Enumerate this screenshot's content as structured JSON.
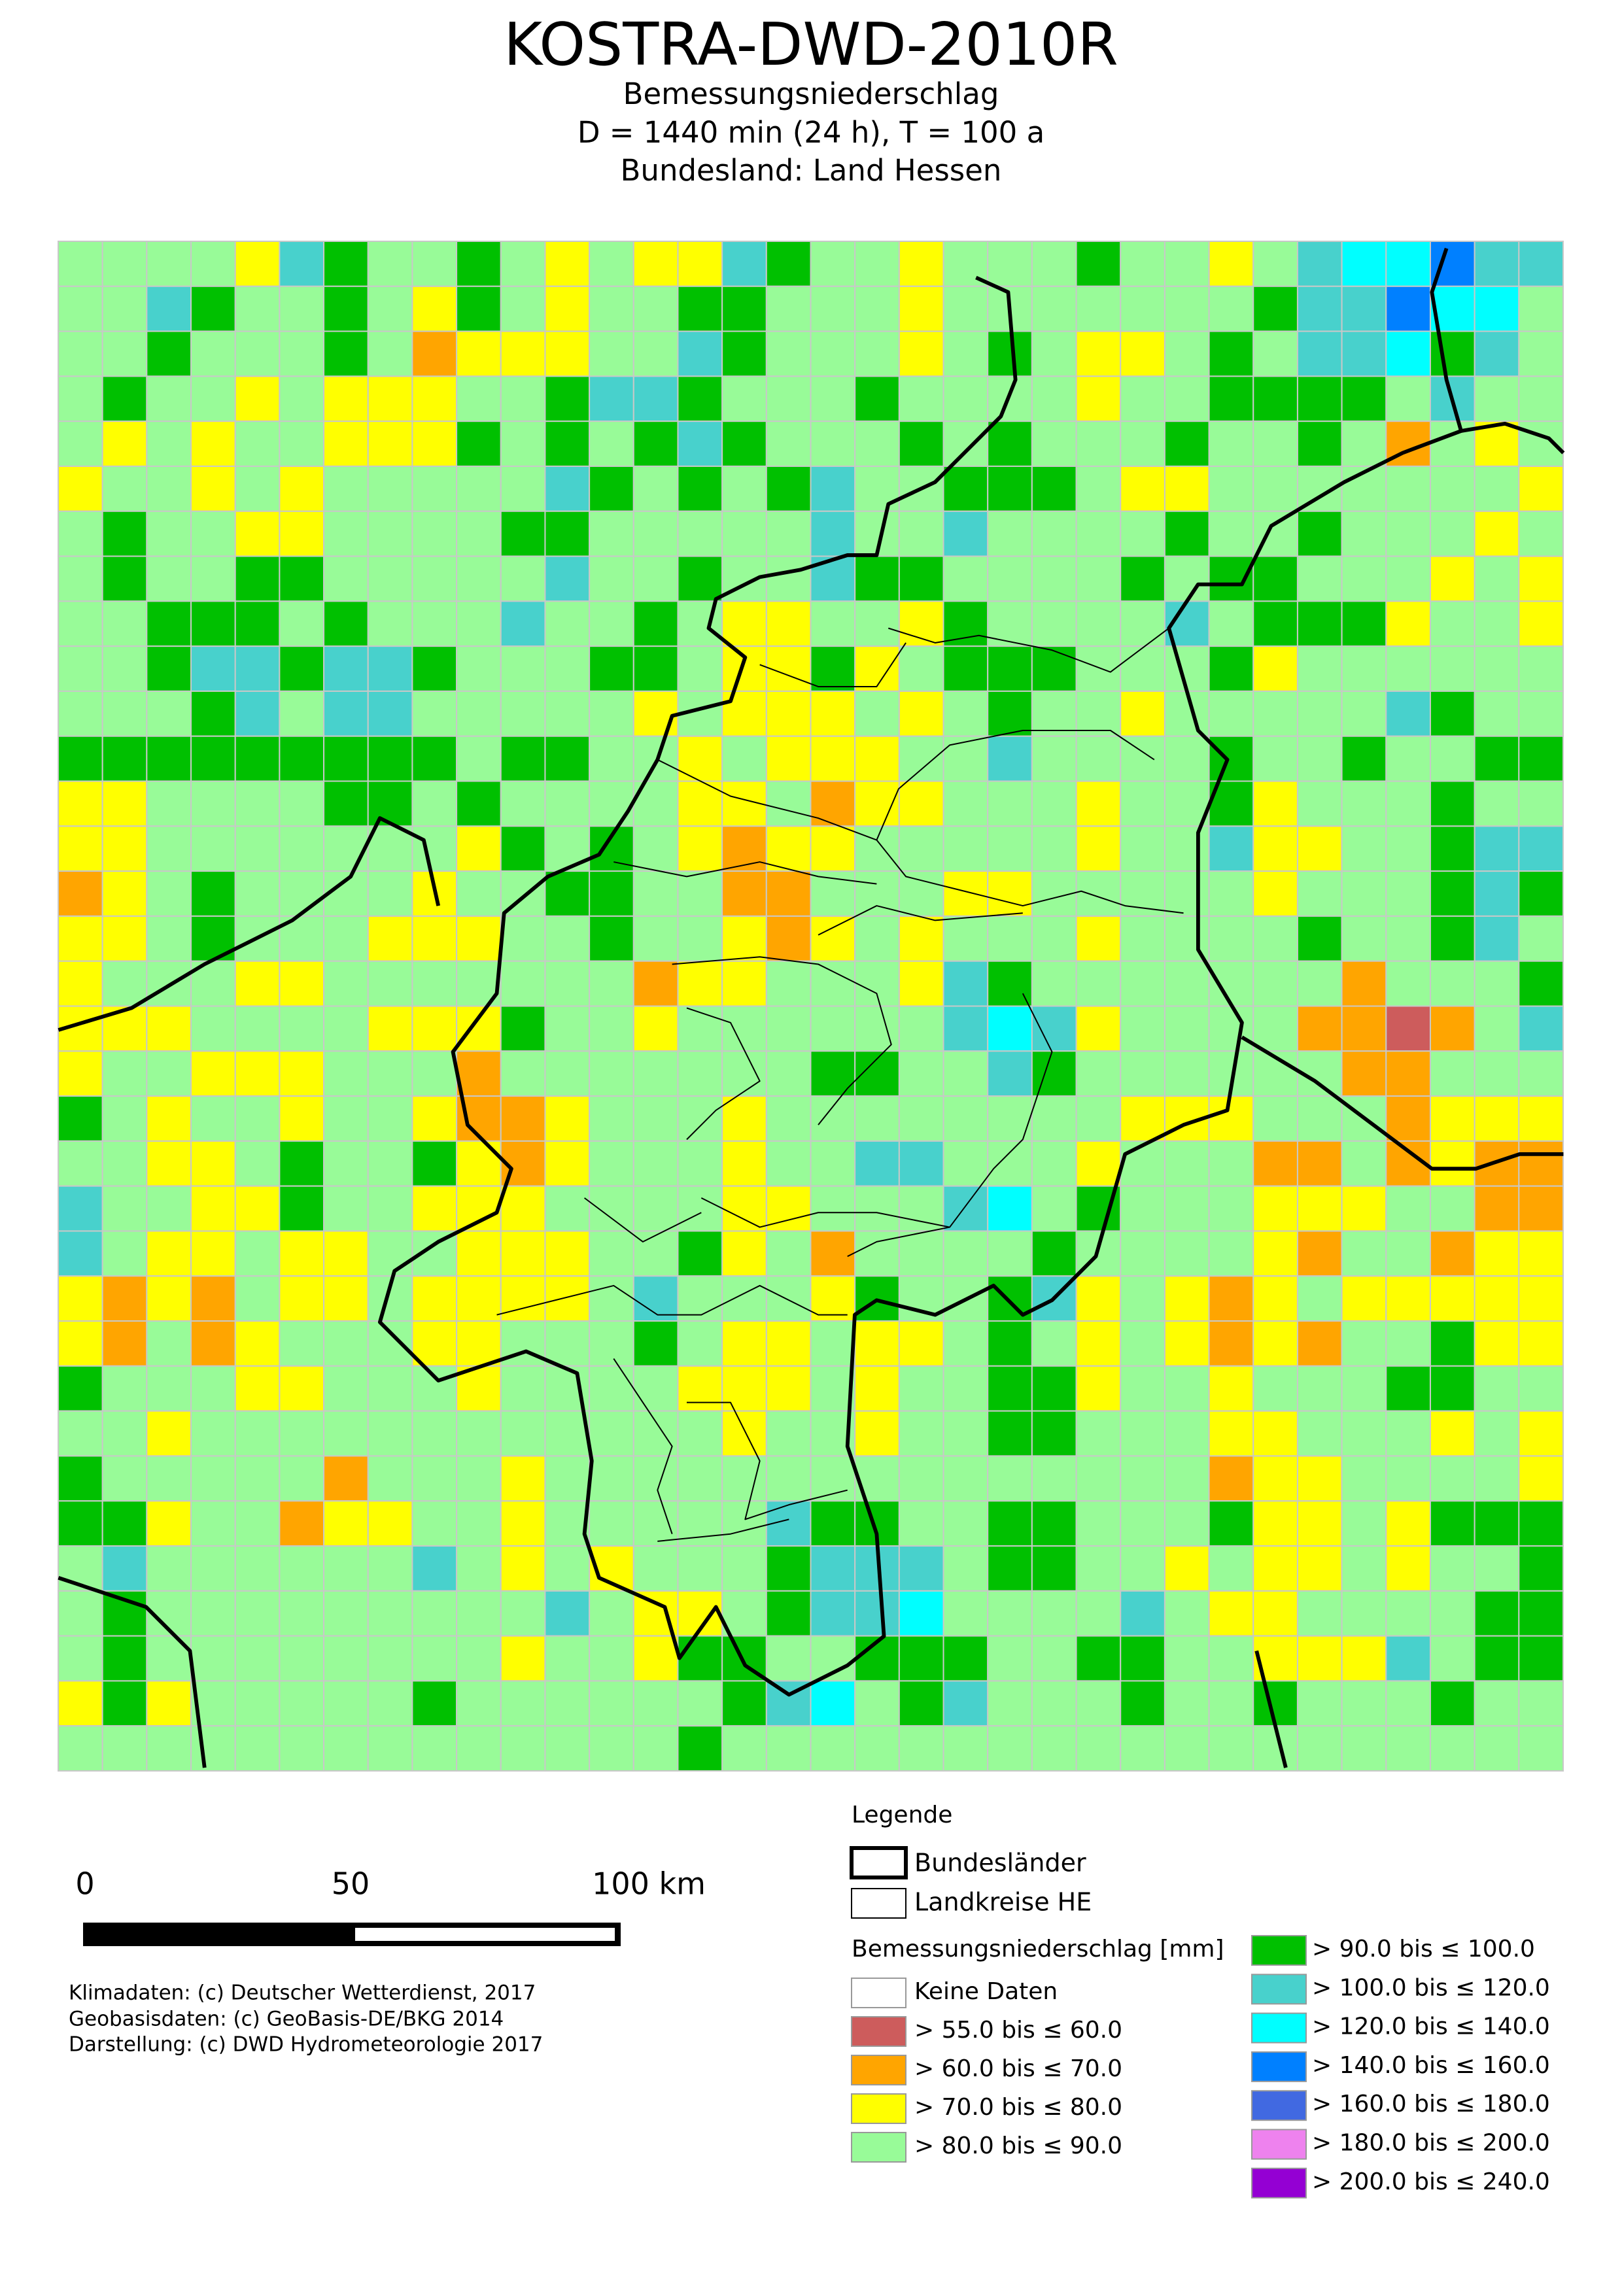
{
  "header": {
    "title": "KOSTRA-DWD-2010R",
    "lines": [
      "Bemessungsniederschlag",
      "D = 1440 min (24 h),  T = 100 a",
      "Bundesland: Land Hessen"
    ]
  },
  "map": {
    "grid": [
      [
        4,
        4,
        4,
        4,
        3,
        6,
        5,
        4,
        4,
        5,
        4,
        3,
        4,
        3,
        3,
        6,
        5,
        4,
        4,
        3,
        4,
        4,
        4,
        5,
        4,
        4,
        3,
        4,
        6,
        7,
        7,
        8,
        6,
        6
      ],
      [
        4,
        4,
        6,
        5,
        4,
        4,
        5,
        4,
        3,
        5,
        4,
        3,
        4,
        4,
        5,
        5,
        4,
        4,
        4,
        3,
        4,
        4,
        4,
        4,
        4,
        4,
        4,
        5,
        6,
        6,
        8,
        7,
        7,
        4
      ],
      [
        4,
        4,
        5,
        4,
        4,
        4,
        5,
        4,
        2,
        3,
        3,
        3,
        4,
        4,
        6,
        5,
        4,
        4,
        4,
        3,
        4,
        5,
        4,
        3,
        3,
        4,
        5,
        4,
        6,
        6,
        7,
        5,
        6,
        4
      ],
      [
        4,
        5,
        4,
        4,
        3,
        4,
        3,
        3,
        3,
        4,
        4,
        5,
        6,
        6,
        5,
        4,
        4,
        4,
        5,
        4,
        4,
        4,
        4,
        3,
        4,
        4,
        5,
        5,
        5,
        5,
        4,
        6,
        4,
        4
      ],
      [
        4,
        3,
        4,
        3,
        4,
        4,
        3,
        3,
        3,
        5,
        4,
        5,
        4,
        5,
        6,
        5,
        4,
        4,
        4,
        5,
        4,
        5,
        4,
        4,
        4,
        5,
        4,
        4,
        5,
        4,
        2,
        4,
        3,
        4
      ],
      [
        3,
        4,
        4,
        3,
        4,
        3,
        4,
        4,
        4,
        4,
        4,
        6,
        5,
        4,
        5,
        4,
        5,
        6,
        4,
        4,
        5,
        5,
        5,
        4,
        3,
        3,
        4,
        4,
        4,
        4,
        4,
        4,
        4,
        3
      ],
      [
        4,
        5,
        4,
        4,
        3,
        3,
        4,
        4,
        4,
        4,
        5,
        5,
        4,
        4,
        4,
        4,
        4,
        6,
        4,
        4,
        6,
        4,
        4,
        4,
        4,
        5,
        4,
        4,
        5,
        4,
        4,
        4,
        3,
        4
      ],
      [
        4,
        5,
        4,
        4,
        5,
        5,
        4,
        4,
        4,
        4,
        4,
        6,
        4,
        4,
        5,
        4,
        4,
        6,
        5,
        5,
        4,
        4,
        4,
        4,
        5,
        4,
        5,
        5,
        4,
        4,
        4,
        3,
        4,
        3
      ],
      [
        4,
        4,
        5,
        5,
        5,
        4,
        5,
        4,
        4,
        4,
        6,
        4,
        4,
        5,
        4,
        3,
        3,
        4,
        4,
        3,
        5,
        4,
        4,
        4,
        4,
        6,
        4,
        5,
        5,
        5,
        3,
        4,
        4,
        3
      ],
      [
        4,
        4,
        5,
        6,
        6,
        5,
        6,
        6,
        5,
        4,
        4,
        4,
        5,
        5,
        4,
        3,
        3,
        5,
        3,
        4,
        5,
        5,
        5,
        4,
        4,
        4,
        5,
        3,
        4,
        4,
        4,
        4,
        4,
        4
      ],
      [
        4,
        4,
        4,
        5,
        6,
        4,
        6,
        6,
        4,
        4,
        4,
        4,
        4,
        3,
        4,
        3,
        3,
        3,
        4,
        3,
        4,
        5,
        4,
        4,
        3,
        4,
        4,
        4,
        4,
        4,
        6,
        5,
        4,
        4
      ],
      [
        5,
        5,
        5,
        5,
        5,
        5,
        5,
        5,
        5,
        4,
        5,
        5,
        4,
        4,
        3,
        4,
        3,
        3,
        3,
        4,
        4,
        6,
        4,
        4,
        4,
        4,
        5,
        4,
        4,
        5,
        4,
        4,
        5,
        5
      ],
      [
        3,
        3,
        4,
        4,
        4,
        4,
        5,
        5,
        4,
        5,
        4,
        4,
        4,
        4,
        3,
        3,
        4,
        2,
        3,
        3,
        4,
        4,
        4,
        3,
        4,
        4,
        5,
        3,
        4,
        4,
        4,
        5,
        4,
        4
      ],
      [
        3,
        3,
        4,
        4,
        4,
        4,
        4,
        4,
        4,
        3,
        5,
        4,
        5,
        4,
        3,
        2,
        3,
        3,
        4,
        4,
        4,
        4,
        4,
        3,
        4,
        4,
        6,
        3,
        3,
        4,
        4,
        5,
        6,
        6
      ],
      [
        2,
        3,
        4,
        5,
        4,
        4,
        4,
        4,
        3,
        4,
        4,
        5,
        5,
        4,
        4,
        2,
        2,
        4,
        4,
        4,
        3,
        3,
        4,
        4,
        4,
        4,
        4,
        3,
        4,
        4,
        4,
        5,
        6,
        5
      ],
      [
        3,
        3,
        4,
        5,
        4,
        4,
        4,
        3,
        3,
        3,
        4,
        4,
        5,
        4,
        4,
        3,
        2,
        3,
        4,
        3,
        4,
        4,
        4,
        3,
        4,
        4,
        4,
        4,
        5,
        4,
        4,
        5,
        6,
        4
      ],
      [
        3,
        4,
        4,
        4,
        3,
        3,
        4,
        4,
        4,
        4,
        4,
        4,
        4,
        2,
        3,
        3,
        4,
        4,
        4,
        3,
        6,
        5,
        4,
        4,
        4,
        4,
        4,
        4,
        4,
        2,
        4,
        4,
        4,
        5
      ],
      [
        3,
        3,
        3,
        4,
        4,
        4,
        4,
        3,
        3,
        3,
        5,
        4,
        4,
        3,
        4,
        4,
        4,
        4,
        4,
        4,
        6,
        7,
        6,
        3,
        4,
        4,
        4,
        4,
        2,
        2,
        1,
        2,
        4,
        6
      ],
      [
        3,
        4,
        4,
        3,
        3,
        3,
        4,
        4,
        4,
        2,
        4,
        4,
        4,
        4,
        4,
        4,
        4,
        5,
        5,
        4,
        4,
        6,
        5,
        4,
        4,
        4,
        4,
        4,
        4,
        2,
        2,
        4,
        4,
        4
      ],
      [
        5,
        4,
        3,
        4,
        4,
        3,
        4,
        4,
        3,
        2,
        2,
        3,
        4,
        4,
        4,
        3,
        4,
        4,
        4,
        4,
        4,
        4,
        4,
        4,
        3,
        3,
        3,
        4,
        4,
        4,
        2,
        3,
        3,
        3
      ],
      [
        4,
        4,
        3,
        3,
        4,
        5,
        4,
        4,
        5,
        3,
        2,
        3,
        4,
        4,
        4,
        3,
        4,
        4,
        6,
        6,
        4,
        4,
        4,
        3,
        4,
        4,
        4,
        2,
        2,
        4,
        2,
        3,
        2,
        2
      ],
      [
        6,
        4,
        4,
        3,
        3,
        5,
        4,
        4,
        3,
        3,
        3,
        4,
        4,
        4,
        4,
        3,
        3,
        4,
        4,
        4,
        6,
        7,
        4,
        5,
        4,
        4,
        4,
        3,
        3,
        3,
        4,
        4,
        2,
        2
      ],
      [
        6,
        4,
        3,
        3,
        4,
        3,
        3,
        4,
        4,
        3,
        3,
        3,
        4,
        4,
        5,
        3,
        4,
        2,
        4,
        4,
        4,
        4,
        5,
        4,
        4,
        4,
        4,
        3,
        2,
        4,
        4,
        2,
        3,
        3
      ],
      [
        3,
        2,
        3,
        2,
        4,
        3,
        3,
        4,
        3,
        3,
        3,
        3,
        4,
        6,
        4,
        4,
        4,
        3,
        5,
        4,
        4,
        5,
        6,
        3,
        4,
        3,
        2,
        3,
        4,
        3,
        3,
        3,
        3,
        3
      ],
      [
        3,
        2,
        4,
        2,
        3,
        4,
        4,
        4,
        3,
        3,
        4,
        4,
        4,
        5,
        4,
        3,
        3,
        4,
        3,
        3,
        4,
        5,
        4,
        3,
        4,
        3,
        2,
        3,
        2,
        4,
        4,
        5,
        3,
        3
      ],
      [
        5,
        4,
        4,
        4,
        3,
        3,
        4,
        4,
        4,
        3,
        4,
        4,
        4,
        4,
        3,
        3,
        3,
        4,
        3,
        4,
        4,
        5,
        5,
        3,
        4,
        4,
        3,
        4,
        4,
        4,
        5,
        5,
        4,
        4
      ],
      [
        4,
        4,
        3,
        4,
        4,
        4,
        4,
        4,
        4,
        4,
        4,
        4,
        4,
        4,
        4,
        3,
        4,
        4,
        3,
        4,
        4,
        5,
        5,
        4,
        4,
        4,
        3,
        3,
        4,
        4,
        4,
        3,
        4,
        3
      ],
      [
        5,
        4,
        4,
        4,
        4,
        4,
        2,
        4,
        4,
        4,
        3,
        4,
        4,
        4,
        4,
        4,
        4,
        4,
        4,
        4,
        4,
        4,
        4,
        4,
        4,
        4,
        2,
        3,
        3,
        4,
        4,
        4,
        4,
        3
      ],
      [
        5,
        5,
        3,
        4,
        4,
        2,
        3,
        3,
        4,
        4,
        3,
        4,
        4,
        4,
        4,
        4,
        6,
        5,
        5,
        4,
        4,
        5,
        5,
        4,
        4,
        4,
        5,
        3,
        3,
        4,
        3,
        5,
        5,
        5
      ],
      [
        4,
        6,
        4,
        4,
        4,
        4,
        4,
        4,
        6,
        4,
        3,
        4,
        3,
        4,
        4,
        4,
        5,
        6,
        6,
        6,
        4,
        5,
        5,
        4,
        4,
        3,
        4,
        3,
        3,
        4,
        3,
        4,
        4,
        5
      ],
      [
        4,
        5,
        4,
        4,
        4,
        4,
        4,
        4,
        4,
        4,
        4,
        6,
        4,
        3,
        3,
        4,
        5,
        6,
        6,
        7,
        4,
        4,
        4,
        4,
        6,
        4,
        3,
        3,
        4,
        4,
        4,
        4,
        5,
        5
      ],
      [
        4,
        5,
        4,
        4,
        4,
        4,
        4,
        4,
        4,
        4,
        3,
        4,
        4,
        3,
        5,
        5,
        4,
        4,
        5,
        5,
        5,
        4,
        4,
        5,
        5,
        4,
        4,
        3,
        3,
        3,
        6,
        4,
        5,
        5
      ],
      [
        3,
        5,
        3,
        4,
        4,
        4,
        4,
        4,
        5,
        4,
        4,
        4,
        4,
        4,
        4,
        5,
        6,
        7,
        4,
        5,
        6,
        4,
        4,
        4,
        5,
        4,
        4,
        5,
        4,
        4,
        4,
        5,
        4,
        4
      ],
      [
        4,
        4,
        4,
        4,
        4,
        4,
        4,
        4,
        4,
        4,
        4,
        4,
        4,
        4,
        5,
        4,
        4,
        4,
        4,
        4,
        4,
        4,
        4,
        4,
        4,
        4,
        4,
        4,
        4,
        4,
        4,
        4,
        4,
        4
      ]
    ]
  },
  "scale_bar": {
    "labels": [
      "0",
      "50",
      "100 km"
    ]
  },
  "credits": [
    "Klimadaten: (c) Deutscher Wetterdienst, 2017",
    "Geobasisdaten: (c) GeoBasis-DE/BKG 2014",
    "Darstellung: (c) DWD Hydrometeorologie 2017"
  ],
  "legend": {
    "title": "Legende",
    "borders": [
      "Bundesländer",
      "Landkreise HE"
    ],
    "classes_title": "Bemessungsniederschlag [mm]",
    "classes": [
      {
        "label": "Keine Daten",
        "color": "#ffffff"
      },
      {
        "label": "> 55.0 bis ≤ 60.0",
        "color": "#cd5c5c"
      },
      {
        "label": "> 60.0 bis ≤ 70.0",
        "color": "#ffa500"
      },
      {
        "label": "> 70.0 bis ≤ 80.0",
        "color": "#ffff00"
      },
      {
        "label": "> 80.0 bis ≤ 90.0",
        "color": "#98fb98"
      },
      {
        "label": "> 90.0 bis ≤ 100.0",
        "color": "#00c000"
      },
      {
        "label": "> 100.0 bis ≤ 120.0",
        "color": "#48d1cc"
      },
      {
        "label": "> 120.0 bis ≤ 140.0",
        "color": "#00ffff"
      },
      {
        "label": "> 140.0 bis ≤ 160.0",
        "color": "#0080ff"
      },
      {
        "label": "> 160.0 bis ≤ 180.0",
        "color": "#4169e1"
      },
      {
        "label": "> 180.0 bis ≤ 200.0",
        "color": "#ee82ee"
      },
      {
        "label": "> 200.0 bis ≤ 240.0",
        "color": "#9400d3"
      }
    ]
  }
}
